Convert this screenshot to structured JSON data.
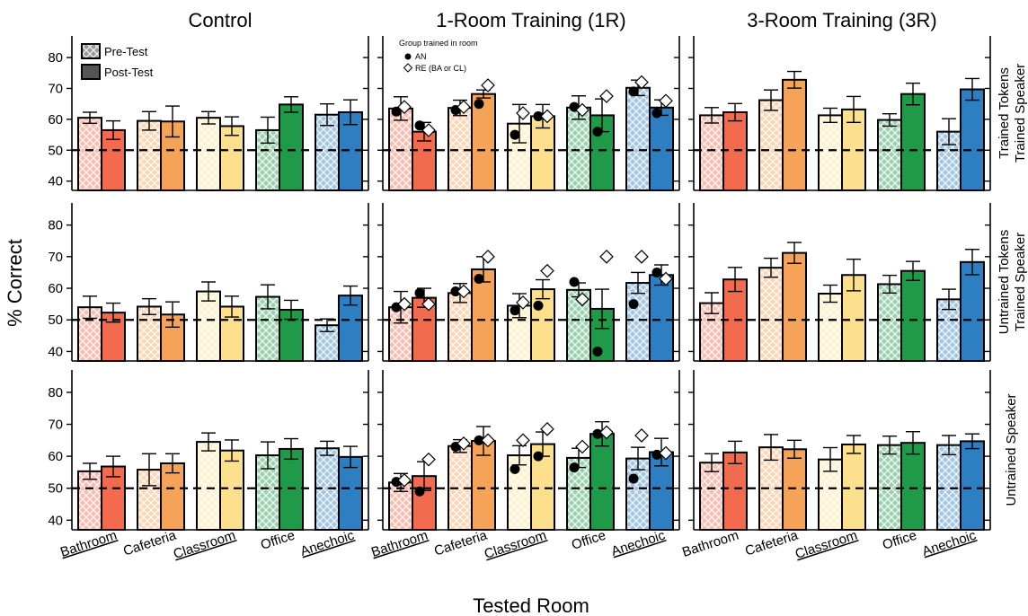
{
  "chart_data": {
    "type": "bar",
    "ylabel": "% Correct",
    "xlabel": "Tested Room",
    "ylim": [
      37,
      87
    ],
    "yticks": [
      40,
      50,
      60,
      70,
      80
    ],
    "reference_line": 50,
    "legend": {
      "pre_label": "Pre-Test",
      "post_label": "Post-Test",
      "group_title": "Group trained in room",
      "an_label": "AN",
      "re_label": "RE (BA or CL)"
    },
    "columns": [
      "Control",
      "1-Room Training (1R)",
      "3-Room Training (3R)"
    ],
    "rows": [
      "Trained Tokens Trained Speaker",
      "Untrained Tokens Trained Speaker",
      "Untrained Speaker"
    ],
    "row_label_lines": [
      [
        "Trained Tokens",
        "Trained Speaker"
      ],
      [
        "Untrained Tokens",
        "Trained Speaker"
      ],
      [
        "Untrained Speaker"
      ]
    ],
    "rooms": [
      "Bathroom",
      "Cafeteria",
      "Classroom",
      "Office",
      "Anechoic"
    ],
    "underlined_rooms_by_column": [
      [
        "Bathroom",
        "Classroom",
        "Anechoic"
      ],
      [
        "Bathroom",
        "Classroom",
        "Anechoic"
      ],
      [
        "Classroom",
        "Anechoic"
      ]
    ],
    "room_colors": {
      "Bathroom": "#f26b4f",
      "Cafeteria": "#f6a35a",
      "Classroom": "#fde08e",
      "Office": "#1f9a49",
      "Anechoic": "#2e7fc1"
    },
    "panels": [
      [
        {
          "pre": [
            60.5,
            59.5,
            60.5,
            56.5,
            61.5
          ],
          "post": [
            56.5,
            59.3,
            57.8,
            64.8,
            62.3
          ],
          "pre_err": [
            1.8,
            3.0,
            2.0,
            4.2,
            3.5
          ],
          "post_err": [
            3.0,
            5.0,
            3.0,
            2.5,
            4.0
          ]
        },
        {
          "pre": [
            54.0,
            54.2,
            59.0,
            57.3,
            48.3
          ],
          "post": [
            52.3,
            51.7,
            54.2,
            53.2,
            57.7
          ],
          "pre_err": [
            3.5,
            2.5,
            3.0,
            3.8,
            2.0
          ],
          "post_err": [
            3.0,
            4.0,
            3.3,
            3.0,
            3.0
          ]
        },
        {
          "pre": [
            55.3,
            55.8,
            64.5,
            60.3,
            62.5
          ],
          "post": [
            56.8,
            57.8,
            61.8,
            62.3,
            59.8
          ],
          "pre_err": [
            2.5,
            5.0,
            2.8,
            4.2,
            2.2
          ],
          "post_err": [
            3.2,
            3.0,
            3.3,
            3.2,
            3.3
          ]
        }
      ],
      [
        {
          "pre": [
            63.5,
            63.7,
            58.6,
            63.8,
            70.2
          ],
          "post": [
            56.0,
            68.2,
            61.0,
            61.3,
            63.8
          ],
          "pre_err": [
            3.8,
            2.5,
            6.2,
            3.8,
            2.5
          ],
          "post_err": [
            3.0,
            1.3,
            3.8,
            5.3,
            2.5
          ],
          "an_pre": [
            62.5,
            63.0,
            55.0,
            64.0,
            69.0
          ],
          "an_post": [
            58.0,
            65.0,
            61.0,
            56.0,
            62.0
          ],
          "re_pre": [
            64.0,
            64.0,
            62.0,
            63.0,
            72.0
          ],
          "re_post": [
            56.5,
            71.0,
            61.0,
            67.5,
            66.0
          ]
        },
        {
          "pre": [
            54.0,
            58.5,
            54.5,
            59.5,
            61.7
          ],
          "post": [
            57.0,
            66.0,
            59.7,
            53.5,
            64.2
          ],
          "pre_err": [
            5.0,
            3.0,
            3.8,
            2.2,
            3.3
          ],
          "post_err": [
            3.0,
            4.0,
            3.0,
            6.2,
            3.2
          ],
          "an_pre": [
            54.0,
            59.0,
            53.0,
            62.0,
            55.0
          ],
          "an_post": [
            58.5,
            63.0,
            54.5,
            40.0,
            65.0
          ],
          "re_pre": [
            55.0,
            59.0,
            55.5,
            56.5,
            70.0
          ],
          "re_post": [
            55.0,
            70.0,
            65.5,
            70.0,
            63.0
          ]
        },
        {
          "pre": [
            51.8,
            63.2,
            60.3,
            59.5,
            59.3
          ],
          "post": [
            53.8,
            64.8,
            63.8,
            67.0,
            61.3
          ],
          "pre_err": [
            2.8,
            2.0,
            3.0,
            3.0,
            3.5
          ],
          "post_err": [
            4.5,
            4.5,
            3.8,
            3.8,
            4.3
          ],
          "an_pre": [
            52.0,
            63.0,
            56.0,
            56.5,
            53.0
          ],
          "an_post": [
            49.0,
            65.0,
            60.0,
            67.0,
            60.5
          ],
          "re_pre": [
            52.5,
            64.0,
            65.0,
            63.0,
            66.5
          ],
          "re_post": [
            59.0,
            65.0,
            68.5,
            67.5,
            61.0
          ]
        }
      ],
      [
        {
          "pre": [
            61.3,
            66.2,
            61.3,
            59.8,
            56.0
          ],
          "post": [
            62.3,
            72.8,
            63.2,
            68.2,
            69.7
          ],
          "pre_err": [
            2.5,
            3.3,
            2.3,
            2.0,
            4.2
          ],
          "post_err": [
            2.8,
            2.7,
            4.2,
            3.5,
            3.5
          ]
        },
        {
          "pre": [
            55.3,
            66.5,
            58.3,
            61.3,
            56.5
          ],
          "post": [
            62.8,
            71.2,
            64.2,
            65.5,
            68.3
          ],
          "pre_err": [
            3.3,
            3.0,
            2.7,
            2.8,
            3.2
          ],
          "post_err": [
            3.8,
            3.3,
            5.0,
            3.0,
            4.0
          ]
        },
        {
          "pre": [
            58.0,
            62.8,
            59.0,
            63.5,
            63.5
          ],
          "post": [
            61.2,
            62.2,
            63.7,
            64.2,
            64.7
          ],
          "pre_err": [
            2.8,
            4.0,
            3.7,
            2.8,
            3.0
          ],
          "post_err": [
            3.5,
            2.8,
            2.8,
            3.5,
            2.3
          ]
        }
      ]
    ]
  }
}
